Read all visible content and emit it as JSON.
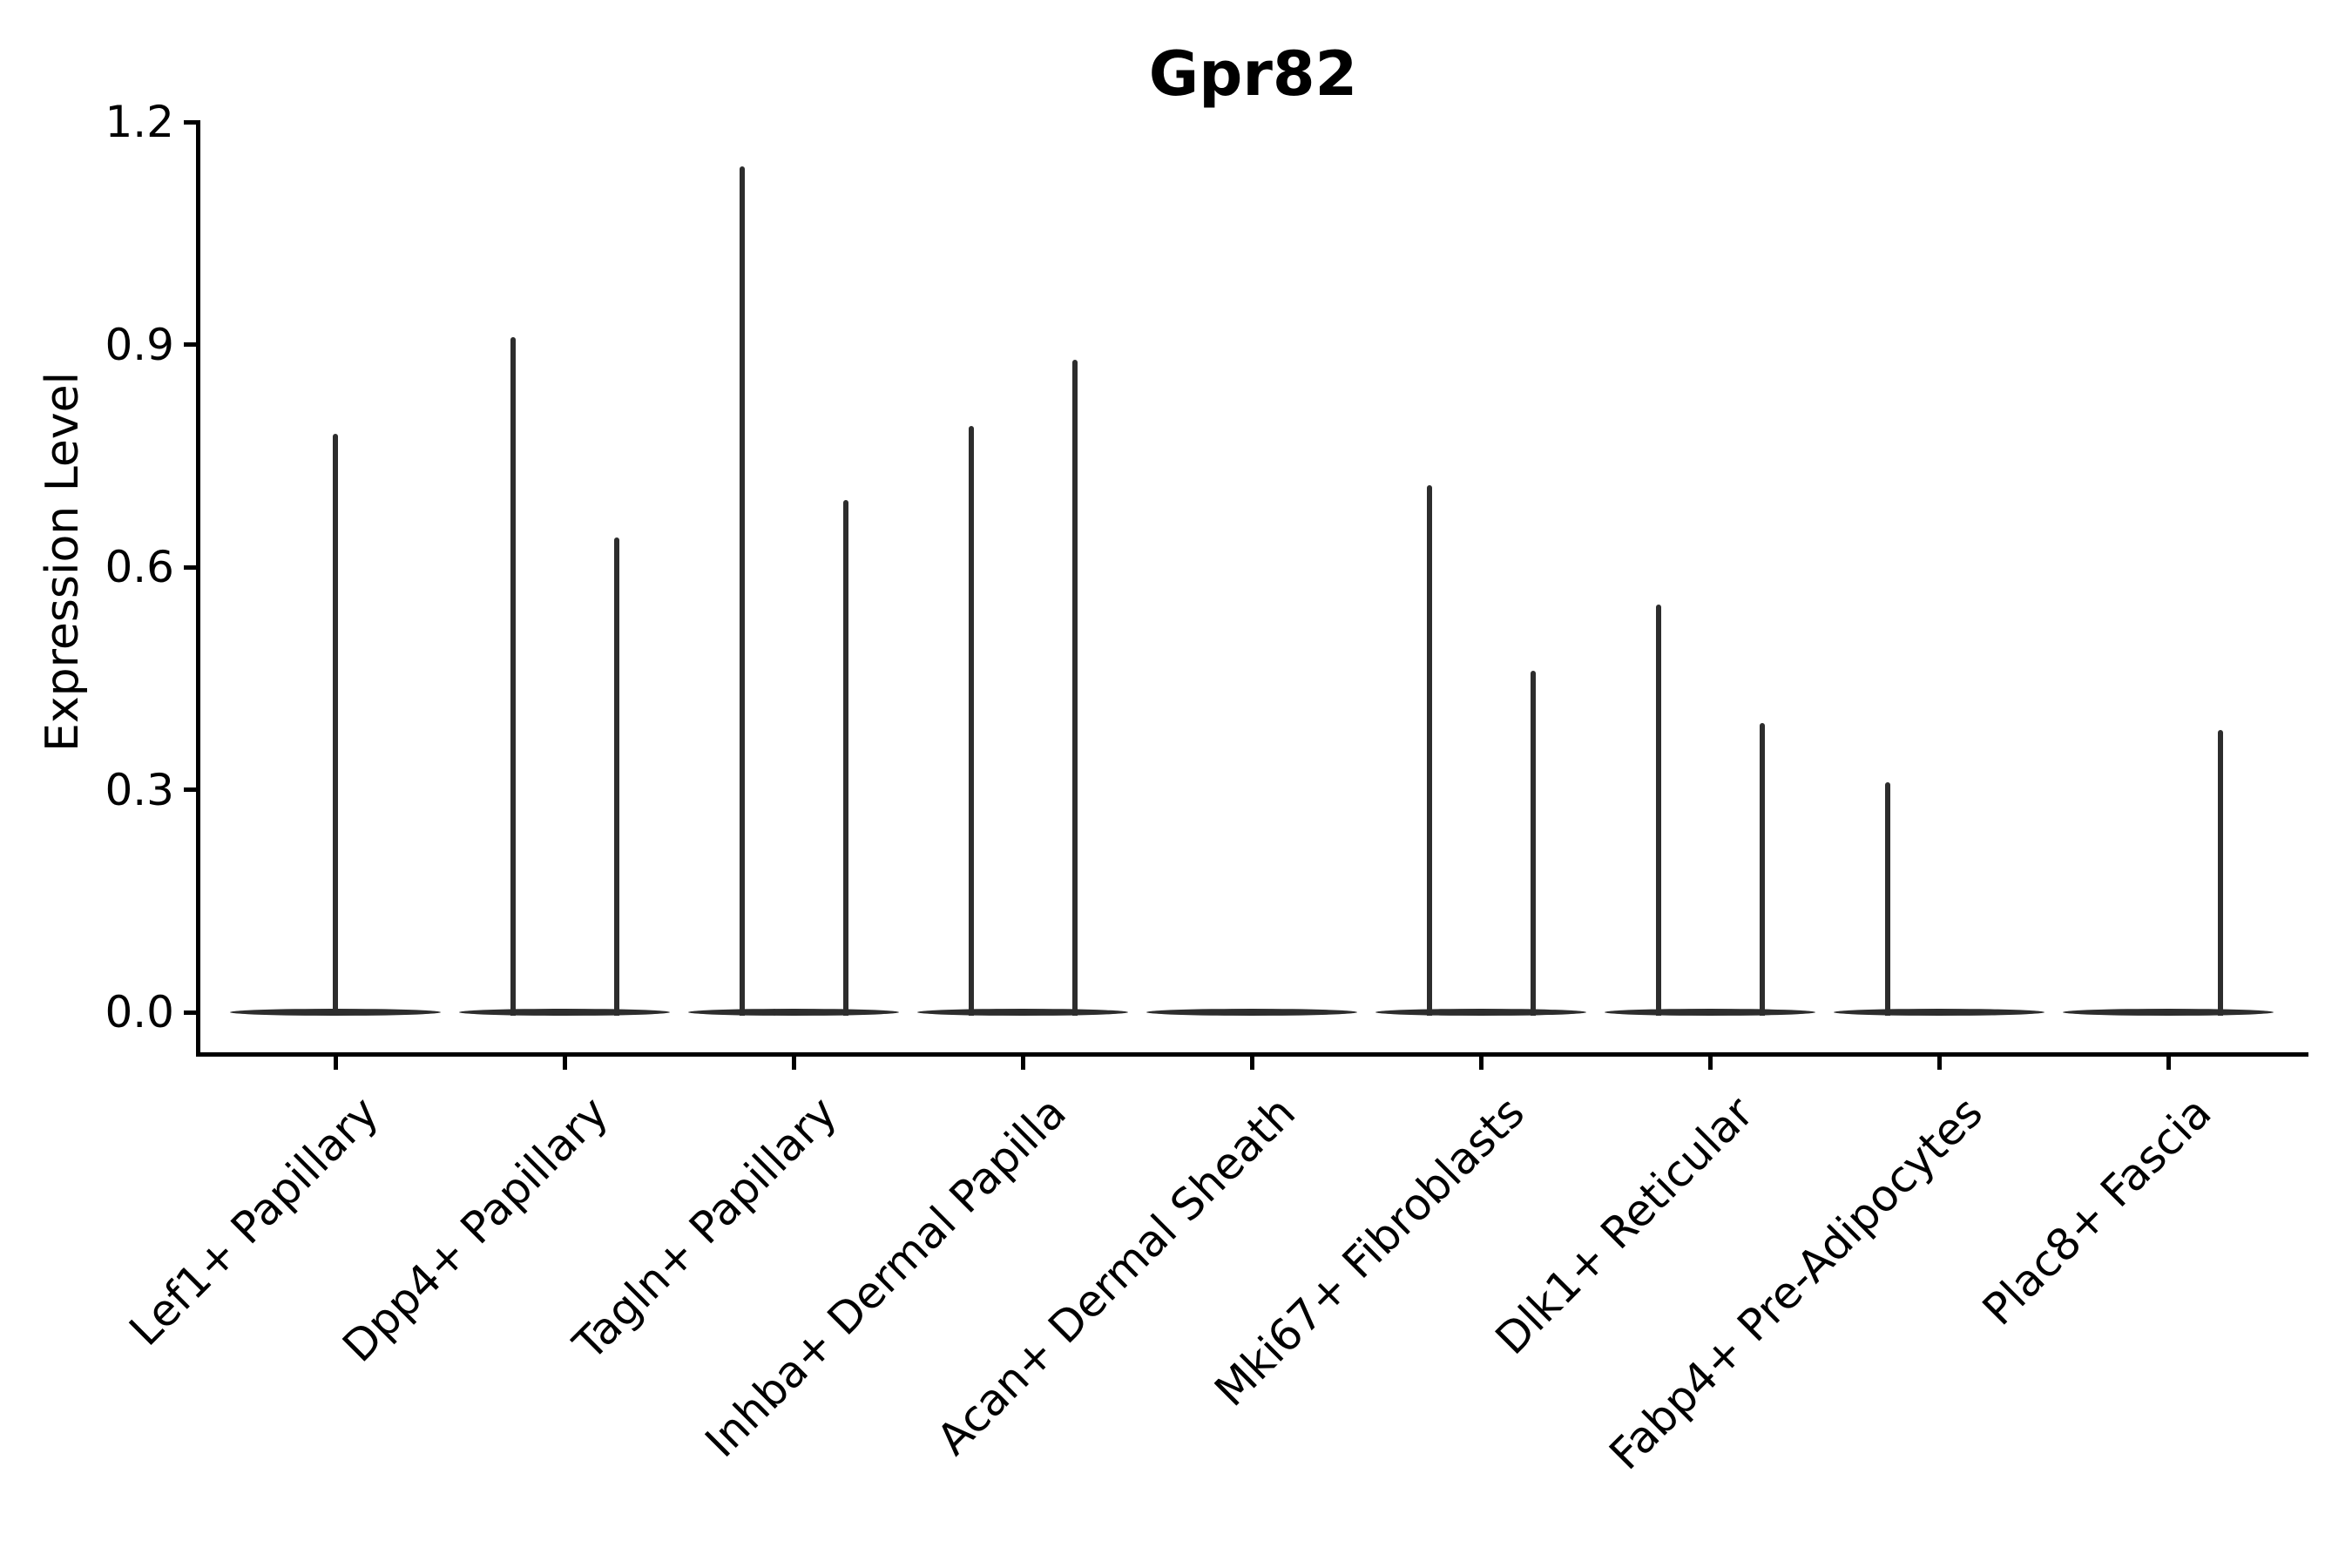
{
  "title": "Gpr82",
  "y_axis": {
    "label": "Expression Level",
    "tick_labels": [
      "1.2",
      "0.9",
      "0.6",
      "0.3",
      "0.0"
    ]
  },
  "colors": {
    "violin": "#2d2d2d",
    "axis": "#000000",
    "background": "#ffffff",
    "text": "#000000"
  },
  "chart_data": {
    "type": "violin",
    "title": "Gpr82",
    "xlabel": "",
    "ylabel": "Expression Level",
    "ylim": [
      0.0,
      1.2
    ],
    "yticks": [
      0.0,
      0.3,
      0.6,
      0.9,
      1.2
    ],
    "grid": false,
    "legend": "none",
    "baseline_value": 0.0,
    "categories": [
      "Lef1+ Papillary",
      "Dpp4+ Papillary",
      "Tagln+ Papillary",
      "Inhba+ Dermal Papilla",
      "Acan+ Dermal Sheath",
      "Mki67+ Fibroblasts",
      "Dlk1+ Reticular",
      "Fabp4+ Pre-Adipocytes",
      "Plac8+ Fascia"
    ],
    "violins": [
      {
        "category": "Lef1+ Papillary",
        "spikes": [
          {
            "pos": "center",
            "peak": 0.78
          }
        ]
      },
      {
        "category": "Dpp4+ Papillary",
        "spikes": [
          {
            "pos": "left",
            "peak": 0.91
          },
          {
            "pos": "right",
            "peak": 0.64
          }
        ]
      },
      {
        "category": "Tagln+ Papillary",
        "spikes": [
          {
            "pos": "left",
            "peak": 1.14
          },
          {
            "pos": "right",
            "peak": 0.69
          }
        ]
      },
      {
        "category": "Inhba+ Dermal Papilla",
        "spikes": [
          {
            "pos": "left",
            "peak": 0.79
          },
          {
            "pos": "right",
            "peak": 0.88
          }
        ]
      },
      {
        "category": "Acan+ Dermal Sheath",
        "spikes": []
      },
      {
        "category": "Mki67+ Fibroblasts",
        "spikes": [
          {
            "pos": "left",
            "peak": 0.71
          },
          {
            "pos": "right",
            "peak": 0.46
          }
        ]
      },
      {
        "category": "Dlk1+ Reticular",
        "spikes": [
          {
            "pos": "left",
            "peak": 0.55
          },
          {
            "pos": "right",
            "peak": 0.39
          }
        ]
      },
      {
        "category": "Fabp4+ Pre-Adipocytes",
        "spikes": [
          {
            "pos": "left",
            "peak": 0.31
          }
        ]
      },
      {
        "category": "Plac8+ Fascia",
        "spikes": [
          {
            "pos": "right",
            "peak": 0.38
          }
        ]
      }
    ]
  }
}
